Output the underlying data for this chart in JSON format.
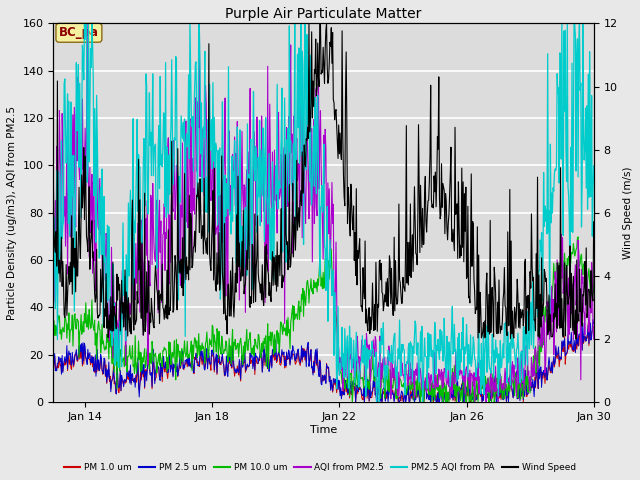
{
  "title": "Purple Air Particulate Matter",
  "xlabel": "Time",
  "ylabel_left": "Particle Density (ug/m3), AQI from PM2.5",
  "ylabel_right": "Wind Speed (m/s)",
  "ylim_left": [
    0,
    160
  ],
  "ylim_right": [
    0,
    12
  ],
  "x_tick_labels": [
    "Jan 14",
    "Jan 18",
    "Jan 22",
    "Jan 26",
    "Jan 30"
  ],
  "annotation_text": "BC_pa",
  "background_color": "#e8e8e8",
  "plot_bg_color": "#dcdcdc",
  "series": {
    "PM1": {
      "color": "#cc0000",
      "lw": 0.7
    },
    "PM25": {
      "color": "#0000cc",
      "lw": 0.7
    },
    "PM10": {
      "color": "#00bb00",
      "lw": 0.8
    },
    "AQI_PM25": {
      "color": "#aa00cc",
      "lw": 0.8
    },
    "AQI_PA": {
      "color": "#00cccc",
      "lw": 0.9
    },
    "Wind": {
      "color": "#000000",
      "lw": 0.8
    }
  },
  "legend_entries": [
    {
      "label": "PM 1.0 um",
      "color": "#cc0000"
    },
    {
      "label": "PM 2.5 um",
      "color": "#0000cc"
    },
    {
      "label": "PM 10.0 um",
      "color": "#00bb00"
    },
    {
      "label": "AQI from PM2.5",
      "color": "#aa00cc"
    },
    {
      "label": "PM2.5 AQI from PA",
      "color": "#00cccc"
    },
    {
      "label": "Wind Speed",
      "color": "#000000"
    }
  ]
}
